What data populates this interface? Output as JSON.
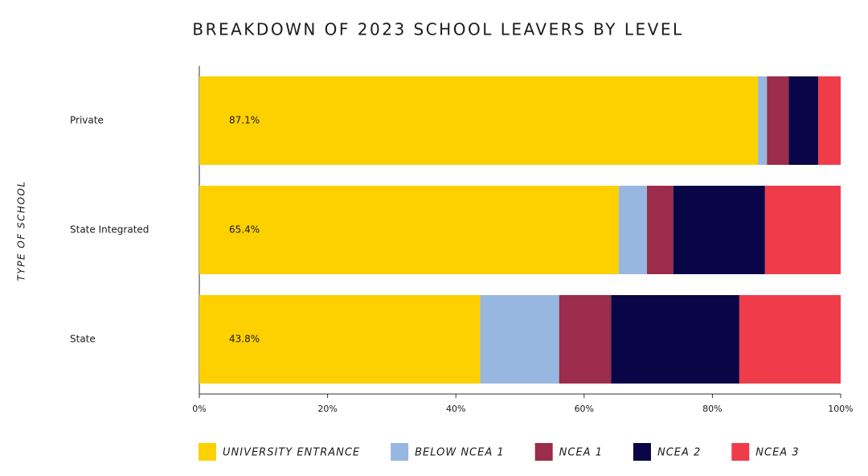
{
  "chart_data": {
    "type": "stacked_bar_horizontal",
    "title": "BREAKDOWN OF 2023 SCHOOL LEAVERS BY LEVEL",
    "y_label": "TYPE OF SCHOOL",
    "categories": [
      "Private",
      "State Integrated",
      "State"
    ],
    "series": [
      {
        "name": "UNIVERSITY ENTRANCE",
        "color": "#fdd000",
        "values": [
          87.1,
          65.4,
          43.8
        ],
        "value_labels": [
          "87.1%",
          "65.4%",
          "43.8%"
        ]
      },
      {
        "name": "BELOW NCEA 1",
        "color": "#98b7e0",
        "values": [
          1.4,
          4.4,
          12.3
        ]
      },
      {
        "name": "NCEA 1",
        "color": "#9b2c4b",
        "values": [
          3.4,
          4.1,
          8.1
        ]
      },
      {
        "name": "NCEA 2",
        "color": "#0a0547",
        "values": [
          4.6,
          14.3,
          20.0
        ]
      },
      {
        "name": "NCEA 3",
        "color": "#f03c4a",
        "values": [
          3.5,
          11.8,
          15.8
        ]
      }
    ],
    "xlim": [
      0,
      100
    ],
    "xticks": [
      {
        "value": 0,
        "label": "0%"
      },
      {
        "value": 20,
        "label": "20%"
      },
      {
        "value": 40,
        "label": "40%"
      },
      {
        "value": 60,
        "label": "60%"
      },
      {
        "value": 80,
        "label": "80%"
      },
      {
        "value": 100,
        "label": "100%"
      }
    ],
    "legend": "bottom"
  }
}
